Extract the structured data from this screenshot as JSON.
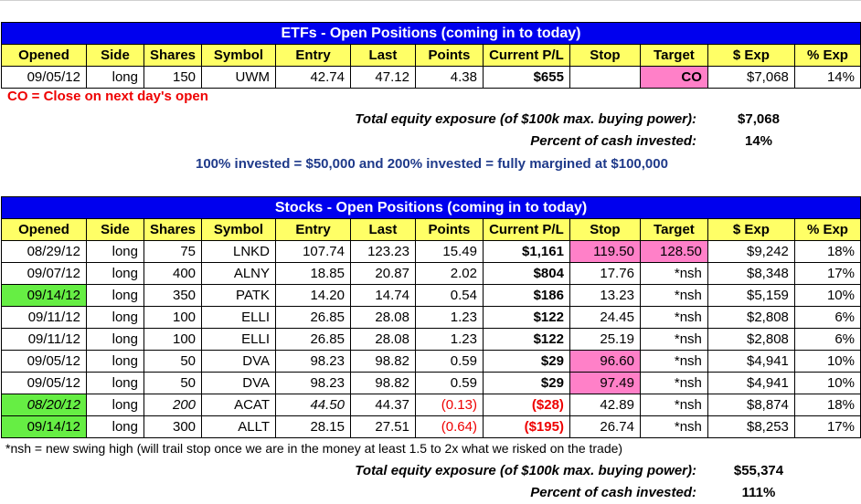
{
  "columns": [
    "Opened",
    "Side",
    "Shares",
    "Symbol",
    "Entry",
    "Last",
    "Points",
    "Current P/L",
    "Stop",
    "Target",
    "$ Exp",
    "% Exp"
  ],
  "etf": {
    "title": "ETFs - Open Positions (coming in to today)",
    "rows": [
      {
        "opened": "09/05/12",
        "side": "long",
        "shares": "150",
        "symbol": "UWM",
        "entry": "42.74",
        "last": "47.12",
        "points": "4.38",
        "pl": "$655",
        "stop": "",
        "target": "CO",
        "exp": "$7,068",
        "pct": "14%"
      }
    ],
    "co_note": "CO = Close on next day's open",
    "exposure_label": "Total equity exposure (of $100k max. buying power):",
    "exposure_value": "$7,068",
    "cash_label": "Percent of cash invested:",
    "cash_value": "14%",
    "invested_note": "100% invested = $50,000 and 200% invested = fully margined at $100,000"
  },
  "stocks": {
    "title": "Stocks - Open Positions (coming in to today)",
    "rows": [
      {
        "opened": "08/29/12",
        "side": "long",
        "shares": "75",
        "symbol": "LNKD",
        "entry": "107.74",
        "last": "123.23",
        "points": "15.49",
        "pl": "$1,161",
        "stop": "119.50",
        "target": "128.50",
        "exp": "$9,242",
        "pct": "18%"
      },
      {
        "opened": "09/07/12",
        "side": "long",
        "shares": "400",
        "symbol": "ALNY",
        "entry": "18.85",
        "last": "20.87",
        "points": "2.02",
        "pl": "$804",
        "stop": "17.76",
        "target": "*nsh",
        "exp": "$8,348",
        "pct": "17%"
      },
      {
        "opened": "09/14/12",
        "side": "long",
        "shares": "350",
        "symbol": "PATK",
        "entry": "14.20",
        "last": "14.74",
        "points": "0.54",
        "pl": "$186",
        "stop": "13.23",
        "target": "*nsh",
        "exp": "$5,159",
        "pct": "10%"
      },
      {
        "opened": "09/11/12",
        "side": "long",
        "shares": "100",
        "symbol": "ELLI",
        "entry": "26.85",
        "last": "28.08",
        "points": "1.23",
        "pl": "$122",
        "stop": "24.45",
        "target": "*nsh",
        "exp": "$2,808",
        "pct": "6%"
      },
      {
        "opened": "09/11/12",
        "side": "long",
        "shares": "100",
        "symbol": "ELLI",
        "entry": "26.85",
        "last": "28.08",
        "points": "1.23",
        "pl": "$122",
        "stop": "25.19",
        "target": "*nsh",
        "exp": "$2,808",
        "pct": "6%"
      },
      {
        "opened": "09/05/12",
        "side": "long",
        "shares": "50",
        "symbol": "DVA",
        "entry": "98.23",
        "last": "98.82",
        "points": "0.59",
        "pl": "$29",
        "stop": "96.60",
        "target": "*nsh",
        "exp": "$4,941",
        "pct": "10%"
      },
      {
        "opened": "09/05/12",
        "side": "long",
        "shares": "50",
        "symbol": "DVA",
        "entry": "98.23",
        "last": "98.82",
        "points": "0.59",
        "pl": "$29",
        "stop": "97.49",
        "target": "*nsh",
        "exp": "$4,941",
        "pct": "10%"
      },
      {
        "opened": "08/20/12",
        "side": "long",
        "shares": "200",
        "symbol": "ACAT",
        "entry": "44.50",
        "last": "44.37",
        "points": "(0.13)",
        "pl": "($28)",
        "stop": "42.89",
        "target": "*nsh",
        "exp": "$8,874",
        "pct": "18%"
      },
      {
        "opened": "09/14/12",
        "side": "long",
        "shares": "300",
        "symbol": "ALLT",
        "entry": "28.15",
        "last": "27.51",
        "points": "(0.64)",
        "pl": "($195)",
        "stop": "26.74",
        "target": "*nsh",
        "exp": "$8,253",
        "pct": "17%"
      }
    ],
    "nsh_note": "*nsh = new swing high (will trail stop once we are in the money at least 1.5 to 2x what we risked on the trade)",
    "exposure_label": "Total equity exposure (of $100k max. buying power):",
    "exposure_value": "$55,374",
    "cash_label": "Percent of cash invested:",
    "cash_value": "111%"
  },
  "colors": {
    "title_bg": "#0000ee",
    "header_bg": "#ffff66",
    "highlight_pink": "#ff80c8",
    "highlight_green": "#66ee44",
    "negative": "#ee0000"
  }
}
